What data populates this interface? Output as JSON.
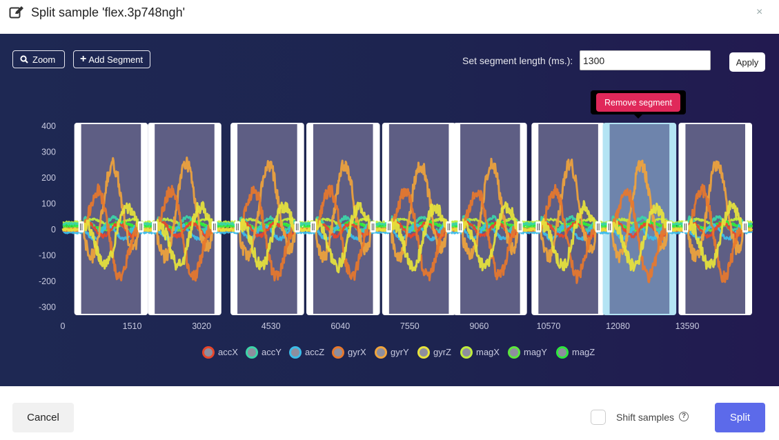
{
  "dialog": {
    "title": "Split sample 'flex.3p748ngh'",
    "close_symbol": "×"
  },
  "toolbar": {
    "zoom_label": "Zoom",
    "add_segment_label": "Add Segment",
    "segment_length_label": "Set segment length (ms.):",
    "segment_length_value": "1300",
    "apply_label": "Apply"
  },
  "tooltip": {
    "label": "Remove segment"
  },
  "footer": {
    "cancel_label": "Cancel",
    "shift_label": "Shift samples",
    "shift_checked": false,
    "split_label": "Split"
  },
  "colors": {
    "accent": "#5c6aea",
    "tooltip_bg": "#e0285a",
    "segment_selected": "#b4e4f4"
  },
  "chart_data": {
    "type": "line",
    "x_ticks": [
      0,
      1510,
      3020,
      4530,
      6040,
      7550,
      9060,
      10570,
      12080,
      13590
    ],
    "y_ticks": [
      400,
      300,
      200,
      100,
      0,
      -100,
      -200,
      -300
    ],
    "xlim": [
      0,
      15000
    ],
    "ylim": [
      -330,
      410
    ],
    "legend_position": "bottom-center",
    "series": [
      {
        "name": "accX",
        "color": "#e8462a"
      },
      {
        "name": "accY",
        "color": "#3cd4a8"
      },
      {
        "name": "accZ",
        "color": "#3cbce8"
      },
      {
        "name": "gyrX",
        "color": "#e8782c"
      },
      {
        "name": "gyrY",
        "color": "#f0a43c"
      },
      {
        "name": "gyrZ",
        "color": "#e8e43c"
      },
      {
        "name": "magX",
        "color": "#c0ec3c"
      },
      {
        "name": "magY",
        "color": "#5ce83c"
      },
      {
        "name": "magZ",
        "color": "#2ce83c"
      }
    ],
    "segments": [
      {
        "start": 400,
        "end": 1700,
        "selected": false
      },
      {
        "start": 2000,
        "end": 3300,
        "selected": false
      },
      {
        "start": 3800,
        "end": 5100,
        "selected": false
      },
      {
        "start": 5450,
        "end": 6750,
        "selected": false
      },
      {
        "start": 7100,
        "end": 8400,
        "selected": false
      },
      {
        "start": 8650,
        "end": 9950,
        "selected": false
      },
      {
        "start": 10350,
        "end": 11650,
        "selected": false
      },
      {
        "start": 11900,
        "end": 13200,
        "selected": true
      },
      {
        "start": 13550,
        "end": 14850,
        "selected": false
      }
    ]
  }
}
